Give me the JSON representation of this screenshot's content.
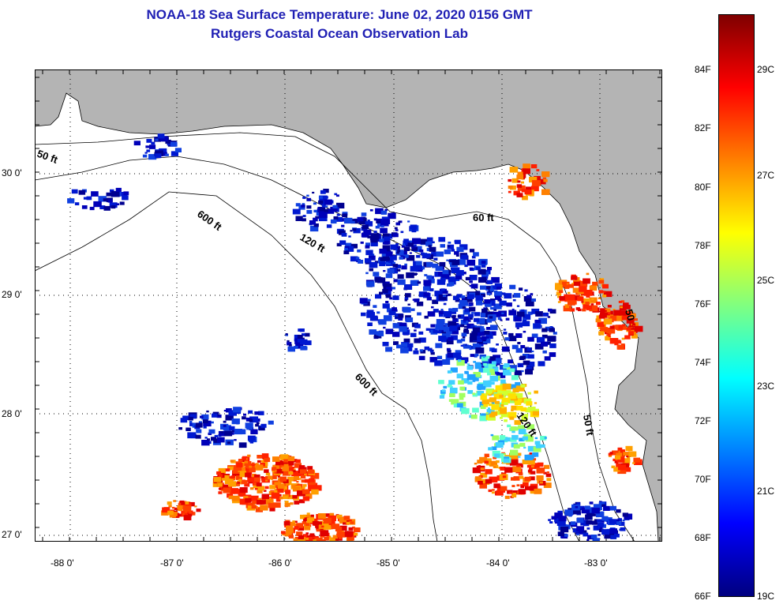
{
  "header": {
    "title": "NOAA-18 Sea Surface Temperature:  June 02, 2020 0156 GMT",
    "subtitle": "Rutgers Coastal Ocean Observation Lab"
  },
  "map": {
    "lon_labels": [
      "-88 0'",
      "-87 0'",
      "-86 0'",
      "-85 0'",
      "-84 0'",
      "-83 0'"
    ],
    "lat_labels": [
      "30 0'",
      "29 0'",
      "28 0'",
      "27 0'"
    ],
    "isobath_labels": [
      "50 ft",
      "600 ft",
      "120 ft",
      "60 ft",
      "600 ft",
      "120 ft",
      "50 ft",
      "50"
    ],
    "colors": {
      "land": "#b4b4b4",
      "water": "#ffffff",
      "grid": "#000000",
      "title": "#1f1fb4"
    }
  },
  "colorbar": {
    "f_labels": [
      "84F",
      "82F",
      "80F",
      "78F",
      "76F",
      "74F",
      "72F",
      "70F",
      "68F",
      "66F"
    ],
    "c_labels": [
      "29C",
      "27C",
      "25C",
      "23C",
      "21C",
      "19C"
    ],
    "stops": [
      "#00007f",
      "#0000ff",
      "#0080ff",
      "#00ffff",
      "#80ff80",
      "#ffff00",
      "#ff8000",
      "#ff0000",
      "#7f0000"
    ]
  }
}
